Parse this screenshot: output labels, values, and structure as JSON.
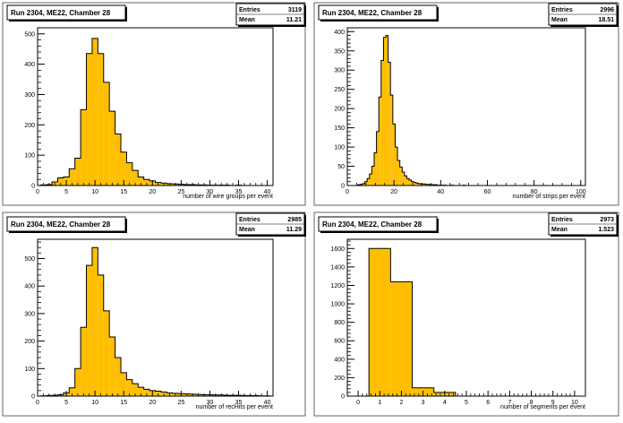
{
  "fill_color": "#ffbf00",
  "chart_data": [
    {
      "type": "bar",
      "title": "Run 2304, ME22, Chamber 28",
      "xlabel": "number of wire groups per event",
      "ylabel": "",
      "xlim": [
        0,
        41
      ],
      "ylim": [
        0,
        520
      ],
      "xticks": [
        0,
        5,
        10,
        15,
        20,
        25,
        30,
        35,
        40
      ],
      "yticks": [
        0,
        100,
        200,
        300,
        400,
        500
      ],
      "bin_width": 1,
      "x": [
        1,
        2,
        3,
        4,
        5,
        6,
        7,
        8,
        9,
        10,
        11,
        12,
        13,
        14,
        15,
        16,
        17,
        18,
        19,
        20,
        21,
        22,
        23,
        24,
        25,
        26,
        27,
        28,
        29,
        30,
        31,
        32,
        33,
        34,
        35,
        36,
        37,
        38,
        39,
        40
      ],
      "values": [
        2,
        3,
        12,
        25,
        28,
        55,
        90,
        250,
        435,
        485,
        435,
        340,
        245,
        170,
        110,
        75,
        50,
        28,
        20,
        15,
        10,
        8,
        6,
        5,
        4,
        3,
        3,
        2,
        2,
        1,
        1,
        1,
        1,
        0,
        1,
        0,
        0,
        0,
        0,
        0
      ],
      "stats": {
        "entries_label": "Entries",
        "entries": "3119",
        "mean_label": "Mean",
        "mean": "11.21"
      }
    },
    {
      "type": "bar",
      "title": "Run 2304, ME22, Chamber 28",
      "xlabel": "number of strips per event",
      "ylabel": "",
      "xlim": [
        0,
        102
      ],
      "ylim": [
        0,
        410
      ],
      "xticks": [
        0,
        20,
        40,
        60,
        80,
        100
      ],
      "yticks": [
        0,
        50,
        100,
        150,
        200,
        250,
        300,
        350,
        400
      ],
      "bin_width": 1,
      "x": [
        5,
        6,
        7,
        8,
        9,
        10,
        11,
        12,
        13,
        14,
        15,
        16,
        17,
        18,
        19,
        20,
        21,
        22,
        23,
        24,
        25,
        26,
        27,
        28,
        29,
        30,
        31,
        32,
        33,
        34,
        35,
        36,
        37,
        38,
        39,
        40,
        41,
        42,
        43,
        44,
        45,
        46,
        47,
        48,
        49,
        50
      ],
      "values": [
        2,
        3,
        5,
        10,
        18,
        30,
        50,
        85,
        140,
        230,
        325,
        385,
        390,
        320,
        235,
        160,
        100,
        65,
        48,
        35,
        25,
        18,
        14,
        10,
        8,
        6,
        5,
        4,
        4,
        3,
        3,
        2,
        2,
        2,
        1,
        1,
        1,
        1,
        0,
        0,
        1,
        0,
        0,
        0,
        0,
        1
      ],
      "stats": {
        "entries_label": "Entries",
        "entries": "2996",
        "mean_label": "Mean",
        "mean": "18.51"
      }
    },
    {
      "type": "bar",
      "title": "Run 2304, ME22, Chamber 28",
      "xlabel": "number of recHits per event",
      "ylabel": "",
      "xlim": [
        0,
        41
      ],
      "ylim": [
        0,
        570
      ],
      "xticks": [
        0,
        5,
        10,
        15,
        20,
        25,
        30,
        35,
        40
      ],
      "yticks": [
        0,
        100,
        200,
        300,
        400,
        500
      ],
      "bin_width": 1,
      "x": [
        1,
        2,
        3,
        4,
        5,
        6,
        7,
        8,
        9,
        10,
        11,
        12,
        13,
        14,
        15,
        16,
        17,
        18,
        19,
        20,
        21,
        22,
        23,
        24,
        25,
        26,
        27,
        28,
        29,
        30,
        31,
        32,
        33,
        34,
        35,
        36,
        37,
        38,
        39,
        40
      ],
      "values": [
        1,
        2,
        3,
        5,
        12,
        30,
        100,
        250,
        475,
        540,
        440,
        310,
        215,
        140,
        85,
        60,
        45,
        32,
        25,
        20,
        18,
        15,
        12,
        10,
        9,
        8,
        7,
        6,
        5,
        5,
        4,
        4,
        3,
        3,
        3,
        2,
        2,
        2,
        1,
        1
      ],
      "stats": {
        "entries_label": "Entries",
        "entries": "2985",
        "mean_label": "Mean",
        "mean": "11.29"
      }
    },
    {
      "type": "bar",
      "title": "Run 2304, ME22, Chamber 28",
      "xlabel": "number of segments per event",
      "ylabel": "",
      "xlim": [
        -0.5,
        10.5
      ],
      "ylim": [
        0,
        1700
      ],
      "xticks": [
        0,
        1,
        2,
        3,
        4,
        5,
        6,
        7,
        8,
        9,
        10
      ],
      "yticks": [
        0,
        200,
        400,
        600,
        800,
        1000,
        1200,
        1400,
        1600
      ],
      "bin_width": 1,
      "x": [
        1,
        2,
        3,
        4
      ],
      "values": [
        1600,
        1240,
        90,
        40
      ],
      "stats": {
        "entries_label": "Entries",
        "entries": "2973",
        "mean_label": "Mean",
        "mean": "1.523"
      }
    }
  ]
}
